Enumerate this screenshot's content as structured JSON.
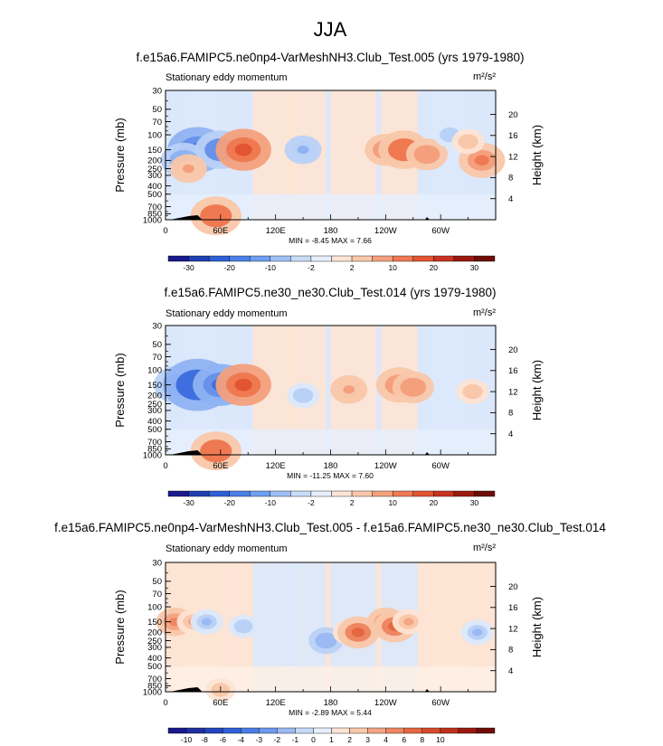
{
  "figure_title": "JJA",
  "chart_data": [
    {
      "type": "heatmap",
      "title": "f.e15a6.FAMIPC5.ne0np4-VarMeshNH3.Club_Test.005 (yrs 1979-1980)",
      "subtitle": "Stationary eddy momentum",
      "units": "m²/s²",
      "ylabel": "Pressure (mb)",
      "ylabel_right": "Height (km)",
      "x_ticks": [
        "0",
        "60E",
        "120E",
        "180",
        "120W",
        "60W"
      ],
      "y_ticks": [
        "30",
        "50",
        "70",
        "100",
        "150",
        "200",
        "250",
        "300",
        "400",
        "500",
        "700",
        "850",
        "1000"
      ],
      "y_ticks_right": [
        "20",
        "16",
        "12",
        "8",
        "4"
      ],
      "stats": "MIN = -8.45 MAX = 7.66",
      "features": [
        {
          "lon": 35,
          "p": 150,
          "value": -8
        },
        {
          "lon": 60,
          "p": 150,
          "value": -6
        },
        {
          "lon": 85,
          "p": 150,
          "value": 7
        },
        {
          "lon": 20,
          "p": 200,
          "value": -5
        },
        {
          "lon": 25,
          "p": 250,
          "value": 3
        },
        {
          "lon": 240,
          "p": 150,
          "value": 4
        },
        {
          "lon": 260,
          "p": 150,
          "value": 6
        },
        {
          "lon": 285,
          "p": 170,
          "value": 4
        },
        {
          "lon": 345,
          "p": 200,
          "value": 5
        },
        {
          "lon": 310,
          "p": 100,
          "value": -2
        },
        {
          "lon": 55,
          "p": 900,
          "value": 6
        },
        {
          "lon": 150,
          "p": 150,
          "value": -3
        },
        {
          "lon": 330,
          "p": 120,
          "value": 2
        }
      ]
    },
    {
      "type": "heatmap",
      "title": "f.e15a6.FAMIPC5.ne30_ne30.Club_Test.014 (yrs 1979-1980)",
      "subtitle": "Stationary eddy momentum",
      "units": "m²/s²",
      "ylabel": "Pressure (mb)",
      "ylabel_right": "Height (km)",
      "x_ticks": [
        "0",
        "60E",
        "120E",
        "180",
        "120W",
        "60W"
      ],
      "y_ticks": [
        "30",
        "50",
        "70",
        "100",
        "150",
        "200",
        "250",
        "300",
        "400",
        "500",
        "700",
        "850",
        "1000"
      ],
      "y_ticks_right": [
        "20",
        "16",
        "12",
        "8",
        "4"
      ],
      "stats": "MIN = -11.25 MAX = 7.60",
      "features": [
        {
          "lon": 15,
          "p": 150,
          "value": -6
        },
        {
          "lon": 35,
          "p": 150,
          "value": -10
        },
        {
          "lon": 60,
          "p": 150,
          "value": -7
        },
        {
          "lon": 85,
          "p": 150,
          "value": 7
        },
        {
          "lon": 200,
          "p": 170,
          "value": 3
        },
        {
          "lon": 255,
          "p": 150,
          "value": 5
        },
        {
          "lon": 270,
          "p": 160,
          "value": 4
        },
        {
          "lon": 55,
          "p": 900,
          "value": 6
        },
        {
          "lon": 150,
          "p": 200,
          "value": -2
        },
        {
          "lon": 335,
          "p": 180,
          "value": 2
        }
      ]
    },
    {
      "type": "heatmap",
      "title": "f.e15a6.FAMIPC5.ne0np4-VarMeshNH3.Club_Test.005 - f.e15a6.FAMIPC5.ne30_ne30.Club_Test.014",
      "subtitle": "Stationary eddy momentum",
      "units": "m²/s²",
      "ylabel": "Pressure (mb)",
      "ylabel_right": "Height (km)",
      "x_ticks": [
        "0",
        "60E",
        "120E",
        "180",
        "120W",
        "60W"
      ],
      "y_ticks": [
        "30",
        "50",
        "70",
        "100",
        "150",
        "200",
        "250",
        "300",
        "400",
        "500",
        "700",
        "850",
        "1000"
      ],
      "y_ticks_right": [
        "20",
        "16",
        "12",
        "8",
        "4"
      ],
      "stats": "MIN = -2.89 MAX = 5.44",
      "features": [
        {
          "lon": 10,
          "p": 150,
          "value": 3
        },
        {
          "lon": 30,
          "p": 150,
          "value": 2
        },
        {
          "lon": 45,
          "p": 150,
          "value": -2
        },
        {
          "lon": 85,
          "p": 170,
          "value": -1.5
        },
        {
          "lon": 175,
          "p": 250,
          "value": -2.5
        },
        {
          "lon": 200,
          "p": 200,
          "value": 2
        },
        {
          "lon": 210,
          "p": 200,
          "value": 4
        },
        {
          "lon": 240,
          "p": 150,
          "value": 3
        },
        {
          "lon": 250,
          "p": 170,
          "value": 4
        },
        {
          "lon": 265,
          "p": 150,
          "value": 2
        },
        {
          "lon": 340,
          "p": 200,
          "value": -2
        },
        {
          "lon": 60,
          "p": 950,
          "value": 1.5
        }
      ]
    }
  ],
  "colorbars": [
    {
      "colors": [
        "#1a1a8c",
        "#1f3fb2",
        "#2e5fd6",
        "#4a80e6",
        "#6f9ff0",
        "#9fc0f5",
        "#c8dcf8",
        "#e6effc",
        "#fde4d4",
        "#f9c7aa",
        "#f4a07d",
        "#ef7a52",
        "#e35433",
        "#c83320",
        "#9b1a10",
        "#6e0d06"
      ],
      "labels": [
        "-30",
        "-20",
        "-10",
        "-2",
        "2",
        "10",
        "20",
        "30"
      ],
      "label_boundaries": [
        1,
        3,
        5,
        7,
        9,
        11,
        13,
        15
      ]
    },
    {
      "colors": [
        "#1a1a8c",
        "#1f3fb2",
        "#2e5fd6",
        "#4a80e6",
        "#6f9ff0",
        "#9fc0f5",
        "#c8dcf8",
        "#e6effc",
        "#fde4d4",
        "#f9c7aa",
        "#f4a07d",
        "#ef7a52",
        "#e35433",
        "#c83320",
        "#9b1a10",
        "#6e0d06"
      ],
      "labels": [
        "-30",
        "-20",
        "-10",
        "-2",
        "2",
        "10",
        "20",
        "30"
      ],
      "label_boundaries": [
        1,
        3,
        5,
        7,
        9,
        11,
        13,
        15
      ]
    },
    {
      "colors": [
        "#1a1a8c",
        "#1f2f9f",
        "#2346bd",
        "#3060d6",
        "#4a7ce6",
        "#6e99ee",
        "#9bbaf3",
        "#c6d9f7",
        "#e6effc",
        "#fde4d4",
        "#f9c7aa",
        "#f4a584",
        "#ee8662",
        "#e56742",
        "#d64a2b",
        "#be311a",
        "#9b1a10",
        "#6e0d06"
      ],
      "labels": [
        "-10",
        "-8",
        "-6",
        "-4",
        "-3",
        "-2",
        "-1",
        "0",
        "1",
        "2",
        "3",
        "4",
        "6",
        "8",
        "10"
      ],
      "label_boundaries": [
        1,
        2,
        3,
        4,
        5,
        6,
        7,
        8,
        9,
        10,
        11,
        12,
        13,
        14,
        15
      ]
    }
  ]
}
